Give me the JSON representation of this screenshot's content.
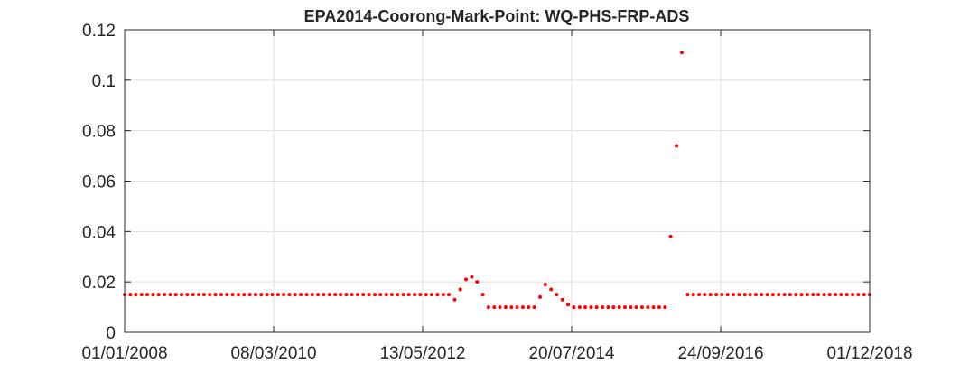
{
  "chart_data": {
    "type": "scatter",
    "title": "EPA2014-Coorong-Mark-Point: WQ-PHS-FRP-ADS",
    "xlabel": "",
    "ylabel": "",
    "x_ticks": [
      "01/01/2008",
      "08/03/2010",
      "13/05/2012",
      "20/07/2014",
      "24/09/2016",
      "01/12/2018"
    ],
    "y_ticks": [
      "0",
      "0.02",
      "0.04",
      "0.06",
      "0.08",
      "0.1",
      "0.12"
    ],
    "ylim": [
      0,
      0.12
    ],
    "xlim": [
      "2008-01-01",
      "2018-12-01"
    ],
    "grid": true,
    "marker_color": "#ff0000",
    "series": [
      {
        "x": [
          "2008-01-01",
          "2008-02-01",
          "2008-03-01",
          "2008-04-01",
          "2008-05-01",
          "2008-06-01",
          "2008-07-01",
          "2008-08-01",
          "2008-09-01",
          "2008-10-01",
          "2008-11-01",
          "2008-12-01",
          "2009-01-01",
          "2009-02-01",
          "2009-03-01",
          "2009-04-01",
          "2009-05-01",
          "2009-06-01",
          "2009-07-01",
          "2009-08-01",
          "2009-09-01",
          "2009-10-01",
          "2009-11-01",
          "2009-12-01",
          "2010-01-01",
          "2010-02-01",
          "2010-03-01",
          "2010-04-01",
          "2010-05-01",
          "2010-06-01",
          "2010-07-01",
          "2010-08-01",
          "2010-09-01",
          "2010-10-01",
          "2010-11-01",
          "2010-12-01",
          "2011-01-01",
          "2011-02-01",
          "2011-03-01",
          "2011-04-01",
          "2011-05-01",
          "2011-06-01",
          "2011-07-01",
          "2011-08-01",
          "2011-09-01",
          "2011-10-01",
          "2011-11-01",
          "2011-12-01",
          "2012-01-01",
          "2012-02-01",
          "2012-03-01",
          "2012-04-01",
          "2012-05-01",
          "2012-06-01",
          "2012-07-01",
          "2012-08-01",
          "2012-09-01",
          "2012-10-01",
          "2012-11-01",
          "2012-12-01",
          "2013-01-01",
          "2013-02-01",
          "2013-03-01",
          "2013-04-01",
          "2013-05-01",
          "2013-06-01",
          "2013-07-01",
          "2013-08-01",
          "2013-09-01",
          "2013-10-01",
          "2013-11-01",
          "2013-12-01",
          "2014-01-01",
          "2014-02-01",
          "2014-03-01",
          "2014-04-01",
          "2014-05-01",
          "2014-06-01",
          "2014-07-01",
          "2014-08-01",
          "2014-09-01",
          "2014-10-01",
          "2014-11-01",
          "2014-12-01",
          "2015-01-01",
          "2015-02-01",
          "2015-03-01",
          "2015-04-01",
          "2015-05-01",
          "2015-06-01",
          "2015-07-01",
          "2015-08-01",
          "2015-09-01",
          "2015-10-01",
          "2015-11-01",
          "2015-12-01",
          "2016-01-01",
          "2016-02-01",
          "2016-03-01",
          "2016-04-01",
          "2016-05-01",
          "2016-06-01",
          "2016-07-01",
          "2016-08-01",
          "2016-09-01",
          "2016-10-01",
          "2016-11-01",
          "2016-12-01",
          "2017-01-01",
          "2017-02-01",
          "2017-03-01",
          "2017-04-01",
          "2017-05-01",
          "2017-06-01",
          "2017-07-01",
          "2017-08-01",
          "2017-09-01",
          "2017-10-01",
          "2017-11-01",
          "2017-12-01",
          "2018-01-01",
          "2018-02-01",
          "2018-03-01",
          "2018-04-01",
          "2018-05-01",
          "2018-06-01",
          "2018-07-01",
          "2018-08-01",
          "2018-09-01",
          "2018-10-01",
          "2018-11-01",
          "2018-12-01"
        ],
        "y": [
          0.015,
          0.015,
          0.015,
          0.015,
          0.015,
          0.015,
          0.015,
          0.015,
          0.015,
          0.015,
          0.015,
          0.015,
          0.015,
          0.015,
          0.015,
          0.015,
          0.015,
          0.015,
          0.015,
          0.015,
          0.015,
          0.015,
          0.015,
          0.015,
          0.015,
          0.015,
          0.015,
          0.015,
          0.015,
          0.015,
          0.015,
          0.015,
          0.015,
          0.015,
          0.015,
          0.015,
          0.015,
          0.015,
          0.015,
          0.015,
          0.015,
          0.015,
          0.015,
          0.015,
          0.015,
          0.015,
          0.015,
          0.015,
          0.015,
          0.015,
          0.015,
          0.015,
          0.015,
          0.015,
          0.015,
          0.015,
          0.015,
          0.015,
          0.013,
          0.017,
          0.021,
          0.022,
          0.02,
          0.015,
          0.01,
          0.01,
          0.01,
          0.01,
          0.01,
          0.01,
          0.01,
          0.01,
          0.01,
          0.014,
          0.019,
          0.017,
          0.015,
          0.013,
          0.011,
          0.01,
          0.01,
          0.01,
          0.01,
          0.01,
          0.01,
          0.01,
          0.01,
          0.01,
          0.01,
          0.01,
          0.01,
          0.01,
          0.01,
          0.01,
          0.01,
          0.01,
          0.038,
          0.074,
          0.111,
          0.015,
          0.015,
          0.015,
          0.015,
          0.015,
          0.015,
          0.015,
          0.015,
          0.015,
          0.015,
          0.015,
          0.015,
          0.015,
          0.015,
          0.015,
          0.015,
          0.015,
          0.015,
          0.015,
          0.015,
          0.015,
          0.015,
          0.015,
          0.015,
          0.015,
          0.015,
          0.015,
          0.015,
          0.015,
          0.015,
          0.015,
          0.015,
          0.015
        ]
      }
    ]
  }
}
